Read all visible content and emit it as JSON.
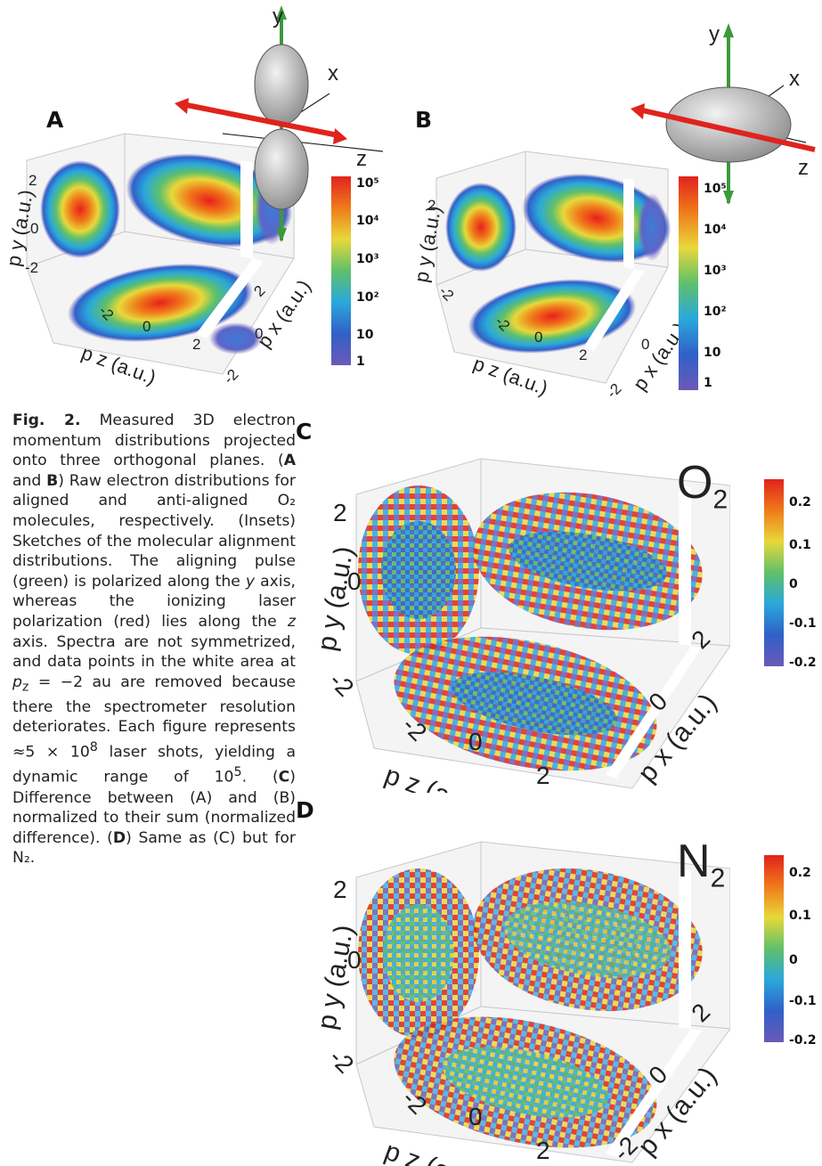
{
  "panels": {
    "A": {
      "label": "A"
    },
    "B": {
      "label": "B"
    },
    "C": {
      "label": "C",
      "molecule": "O",
      "molecule_sub": "2"
    },
    "D": {
      "label": "D",
      "molecule": "N",
      "molecule_sub": "2"
    }
  },
  "axes": {
    "py": "p y (a.u.)",
    "pz": "p z (a.u.)",
    "px": "p x (a.u.)",
    "ticks_neg2": "-2",
    "ticks_0": "0",
    "ticks_2": "2"
  },
  "inset_axes": {
    "x": "x",
    "y": "y",
    "z": "z"
  },
  "colorbar_log": {
    "ticks": [
      "10⁵",
      "10⁴",
      "10³",
      "10²",
      "10",
      "1"
    ]
  },
  "colorbar_diff": {
    "ticks": [
      "0.2",
      "0.1",
      "0",
      "-0.1",
      "-0.2"
    ]
  },
  "caption": {
    "fig": "Fig. 2.",
    "s1": " Measured 3D electron momentum distributions projected onto three orthogonal planes. (",
    "A": "A",
    "s2": " and ",
    "B": "B",
    "s3": ") Raw electron distributions for aligned and anti-aligned O₂ molecules, respectively. (Insets) Sketches of the molecular alignment distributions. The aligning pulse (green) is polarized along the ",
    "y": "y",
    "s4": " axis, whereas the ionizing laser polarization (red) lies along the ",
    "z": "z",
    "s5": " axis. Spectra are not symmetrized, and data points in the white area at ",
    "pz": "p",
    "pz_sub": "z",
    "s6": " = −2 au are removed because there the spectrometer resolution deteriorates. Each figure represents ≈5 × 10",
    "exp8": "8",
    "s7": " laser shots, yielding a dynamic range of 10",
    "exp5": "5",
    "s8": ". (",
    "C": "C",
    "s9": ") Difference between (A) and (B) normalized to their sum (normalized difference). (",
    "D": "D",
    "s10": ") Same as (C) but for N₂."
  },
  "colors": {
    "aligning_pulse": "#3a9a3a",
    "ionizing_laser": "#e0231c",
    "grid": "#c8c8c8"
  }
}
